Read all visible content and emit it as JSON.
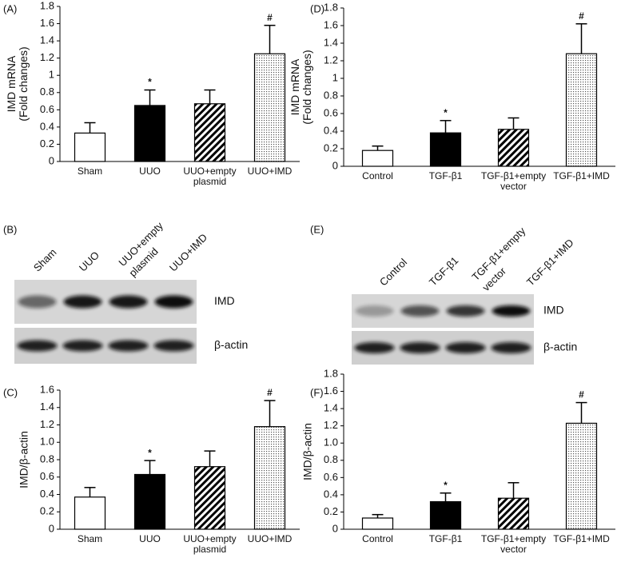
{
  "chart_data": [
    {
      "type": "bar",
      "panel": "(A)",
      "ylabel": [
        "IMD mRNA",
        "(Fold changes)"
      ],
      "categories": [
        "Sham",
        "UUO",
        "UUO+empty plasmid",
        "UUO+IMD"
      ],
      "values": [
        0.33,
        0.65,
        0.67,
        1.25
      ],
      "errors": [
        0.12,
        0.18,
        0.16,
        0.33
      ],
      "markers": [
        null,
        "*",
        null,
        "#"
      ],
      "fills": [
        "white",
        "black",
        "hatch",
        "dots"
      ],
      "ylim": [
        0,
        1.8
      ],
      "yticks": [
        0,
        0.2,
        0.4,
        0.6,
        0.8,
        1,
        1.2,
        1.4,
        1.6,
        1.8
      ]
    },
    {
      "type": "bar",
      "panel": "(D)",
      "ylabel": [
        "IMD mRNA",
        "(Fold changes)"
      ],
      "categories": [
        "Control",
        "TGF-β1",
        "TGF-β1+empty vector",
        "TGF-β1+IMD"
      ],
      "values": [
        0.18,
        0.38,
        0.42,
        1.28
      ],
      "errors": [
        0.05,
        0.14,
        0.13,
        0.34
      ],
      "markers": [
        null,
        "*",
        null,
        "#"
      ],
      "fills": [
        "white",
        "black",
        "hatch",
        "dots"
      ],
      "ylim": [
        0,
        1.8
      ],
      "yticks": [
        0,
        0.2,
        0.4,
        0.6,
        0.8,
        1,
        1.2,
        1.4,
        1.6,
        1.8
      ]
    },
    {
      "type": "bar",
      "panel": "(C)",
      "ylabel": [
        "IMD/β-actin"
      ],
      "categories": [
        "Sham",
        "UUO",
        "UUO+empty plasmid",
        "UUO+IMD"
      ],
      "values": [
        0.37,
        0.63,
        0.72,
        1.18
      ],
      "errors": [
        0.11,
        0.16,
        0.18,
        0.3
      ],
      "markers": [
        null,
        "*",
        null,
        "#"
      ],
      "fills": [
        "white",
        "black",
        "hatch",
        "dots"
      ],
      "ylim": [
        0,
        1.6
      ],
      "yticks": [
        0,
        0.2,
        0.4,
        0.6,
        0.8,
        {
          "value": 1,
          "label": "1.0"
        },
        1.2,
        1.4,
        1.6
      ]
    },
    {
      "type": "bar",
      "panel": "(F)",
      "ylabel": [
        "IMD/β-actin"
      ],
      "categories": [
        "Control",
        "TGF-β1",
        "TGF-β1+empty vector",
        "TGF-β1+IMD"
      ],
      "values": [
        0.13,
        0.32,
        0.36,
        1.23
      ],
      "errors": [
        0.04,
        0.1,
        0.18,
        0.24
      ],
      "markers": [
        null,
        "*",
        null,
        "#"
      ],
      "fills": [
        "white",
        "black",
        "hatch",
        "dots"
      ],
      "ylim": [
        0,
        1.8
      ],
      "yticks": [
        0,
        0.2,
        0.4,
        0.6,
        0.8,
        {
          "value": 1,
          "label": "1.0"
        },
        1.2,
        1.4,
        1.6,
        1.8
      ]
    }
  ],
  "blots": [
    {
      "panel": "(B)",
      "lanes": [
        [
          "Sham"
        ],
        [
          "UUO"
        ],
        [
          "UUO+empty",
          "plasmid"
        ],
        [
          "UUO+IMD"
        ]
      ],
      "rows": [
        "IMD",
        "β-actin"
      ]
    },
    {
      "panel": "(E)",
      "lanes": [
        [
          "Control"
        ],
        [
          "TGF-β1"
        ],
        [
          "TGF-β1+empty",
          "vector"
        ],
        [
          "TGF-β1+IMD"
        ]
      ],
      "rows": [
        "IMD",
        "β-actin"
      ]
    }
  ]
}
